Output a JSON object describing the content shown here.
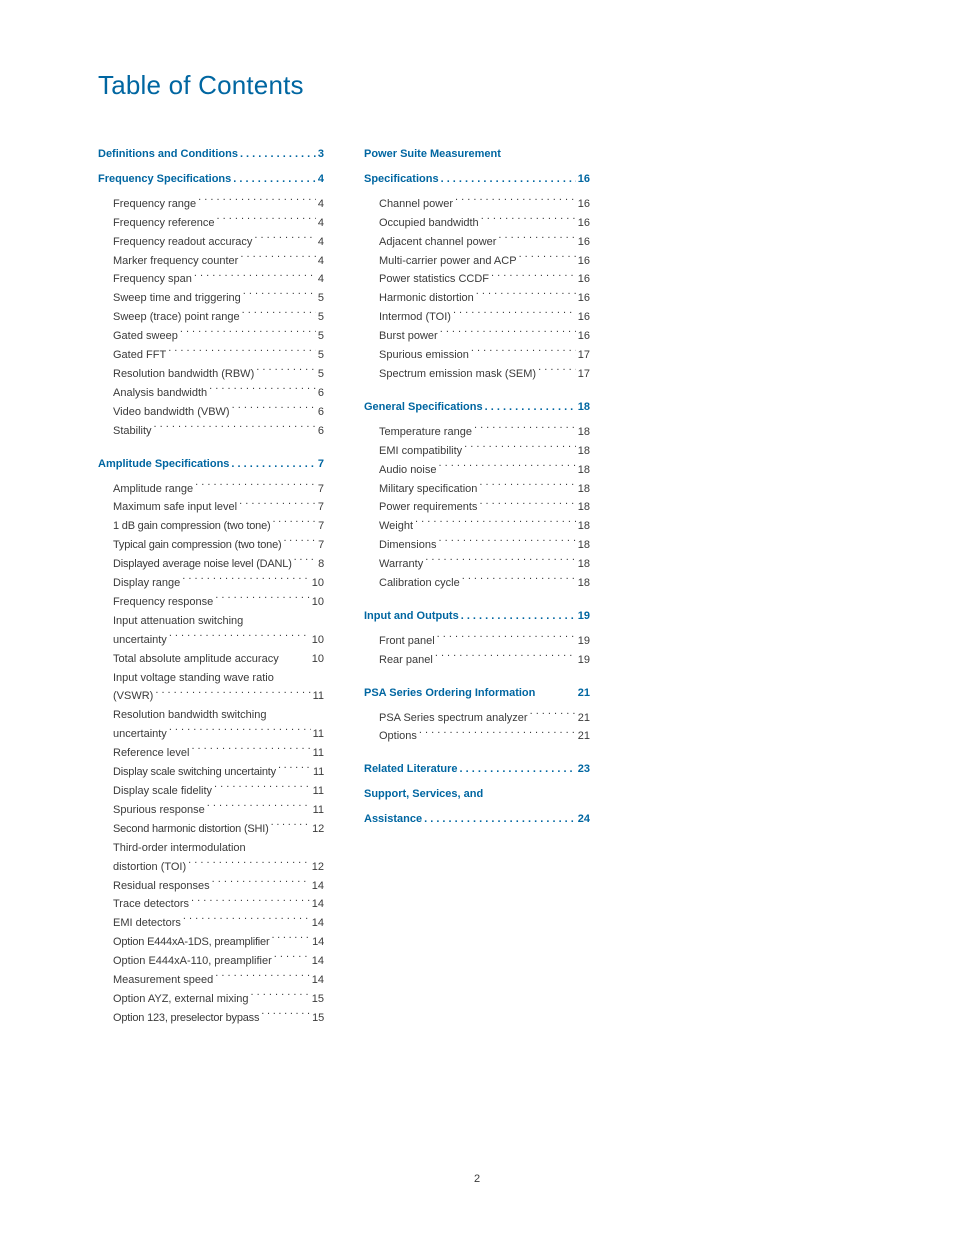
{
  "title": "Table of Contents",
  "title_color": "#0066a1",
  "section_color": "#0066a1",
  "body_color": "#3a3a3a",
  "page_number": "2",
  "col1": {
    "sections": [
      {
        "label": "Definitions and Conditions",
        "page": "3",
        "entries": []
      },
      {
        "label": "Frequency Specifications",
        "page": "4",
        "entries": [
          {
            "label": "Frequency range",
            "page": "4"
          },
          {
            "label": "Frequency reference",
            "page": "4"
          },
          {
            "label": "Frequency readout accuracy",
            "page": "4"
          },
          {
            "label": "Marker frequency counter",
            "page": "4"
          },
          {
            "label": "Frequency span",
            "page": "4"
          },
          {
            "label": "Sweep time and triggering",
            "page": "5"
          },
          {
            "label": "Sweep (trace) point range",
            "page": "5"
          },
          {
            "label": "Gated sweep",
            "page": "5"
          },
          {
            "label": "Gated FFT",
            "page": "5"
          },
          {
            "label": "Resolution bandwidth (RBW)",
            "page": "5"
          },
          {
            "label": "Analysis bandwidth",
            "page": "6"
          },
          {
            "label": "Video bandwidth (VBW)",
            "page": "6"
          },
          {
            "label": "Stability",
            "page": "6"
          }
        ]
      },
      {
        "label": "Amplitude Specifications",
        "page": "7",
        "entries": [
          {
            "label": "Amplitude range",
            "page": "7"
          },
          {
            "label": "Maximum safe input level",
            "page": "7"
          },
          {
            "label": "1 dB gain compression (two tone)",
            "page": "7",
            "tight": true
          },
          {
            "label": "Typical gain compression (two tone)",
            "page": "7",
            "tight": true
          },
          {
            "label": "Displayed average noise level (DANL)",
            "page": "8",
            "tight": true
          },
          {
            "label": "Display range",
            "page": "10"
          },
          {
            "label": "Frequency response",
            "page": "10"
          },
          {
            "multiline": true,
            "line1": "Input attenuation switching",
            "line2": "uncertainty",
            "page": "10"
          },
          {
            "label": "Total absolute amplitude accuracy",
            "page": "10",
            "nodots": true
          },
          {
            "multiline": true,
            "line1": "Input voltage standing wave ratio",
            "line2": "(VSWR)",
            "page": "11"
          },
          {
            "multiline": true,
            "line1": "Resolution bandwidth switching",
            "line2": "uncertainty",
            "page": "11"
          },
          {
            "label": "Reference level",
            "page": "11"
          },
          {
            "label": "Display scale switching uncertainty",
            "page": "11",
            "tight": true
          },
          {
            "label": "Display scale fidelity",
            "page": "11"
          },
          {
            "label": "Spurious response",
            "page": "11"
          },
          {
            "label": "Second harmonic distortion (SHI)",
            "page": "12",
            "tight": true
          },
          {
            "multiline": true,
            "line1": "Third-order intermodulation",
            "line2": "distortion (TOI)",
            "page": "12"
          },
          {
            "label": "Residual responses",
            "page": "14"
          },
          {
            "label": "Trace detectors",
            "page": "14"
          },
          {
            "label": "EMI detectors",
            "page": "14"
          },
          {
            "label": "Option E444xA-1DS, preamplifier",
            "page": "14",
            "tight": true
          },
          {
            "label": "Option E444xA-110, preamplifier",
            "page": "14"
          },
          {
            "label": "Measurement speed",
            "page": "14"
          },
          {
            "label": "Option AYZ, external mixing",
            "page": "15"
          },
          {
            "label": "Option 123, preselector bypass",
            "page": "15",
            "tight": true
          }
        ]
      }
    ]
  },
  "col2": {
    "sections": [
      {
        "label_multi": [
          "Power Suite Measurement",
          "Specifications"
        ],
        "page": "16",
        "entries": [
          {
            "label": "Channel power",
            "page": "16"
          },
          {
            "label": "Occupied bandwidth",
            "page": "16"
          },
          {
            "label": "Adjacent channel power",
            "page": "16"
          },
          {
            "label": "Multi-carrier power and ACP",
            "page": "16"
          },
          {
            "label": "Power statistics CCDF",
            "page": "16"
          },
          {
            "label": "Harmonic distortion",
            "page": "16"
          },
          {
            "label": "Intermod (TOI)",
            "page": "16"
          },
          {
            "label": "Burst power",
            "page": "16"
          },
          {
            "label": "Spurious emission",
            "page": "17"
          },
          {
            "label": "Spectrum emission mask (SEM)",
            "page": "17"
          }
        ]
      },
      {
        "label": "General Specifications",
        "page": "18",
        "entries": [
          {
            "label": "Temperature range",
            "page": "18"
          },
          {
            "label": "EMI compatibility",
            "page": "18"
          },
          {
            "label": "Audio noise",
            "page": "18"
          },
          {
            "label": "Military specification",
            "page": "18"
          },
          {
            "label": "Power requirements",
            "page": "18"
          },
          {
            "label": "Weight",
            "page": "18"
          },
          {
            "label": "Dimensions",
            "page": "18"
          },
          {
            "label": "Warranty",
            "page": "18"
          },
          {
            "label": "Calibration cycle",
            "page": "18"
          }
        ]
      },
      {
        "label": "Input and Outputs",
        "page": "19",
        "entries": [
          {
            "label": "Front panel",
            "page": "19"
          },
          {
            "label": "Rear panel",
            "page": "19"
          }
        ]
      },
      {
        "label": "PSA Series Ordering Information",
        "page": "21",
        "nodots": true,
        "entries": [
          {
            "label": "PSA Series spectrum analyzer",
            "page": "21"
          },
          {
            "label": "Options",
            "page": "21"
          }
        ]
      },
      {
        "label": "Related Literature",
        "page": "23",
        "entries": []
      },
      {
        "label_multi": [
          "Support, Services, and",
          "Assistance"
        ],
        "page": "24",
        "entries": []
      }
    ]
  }
}
